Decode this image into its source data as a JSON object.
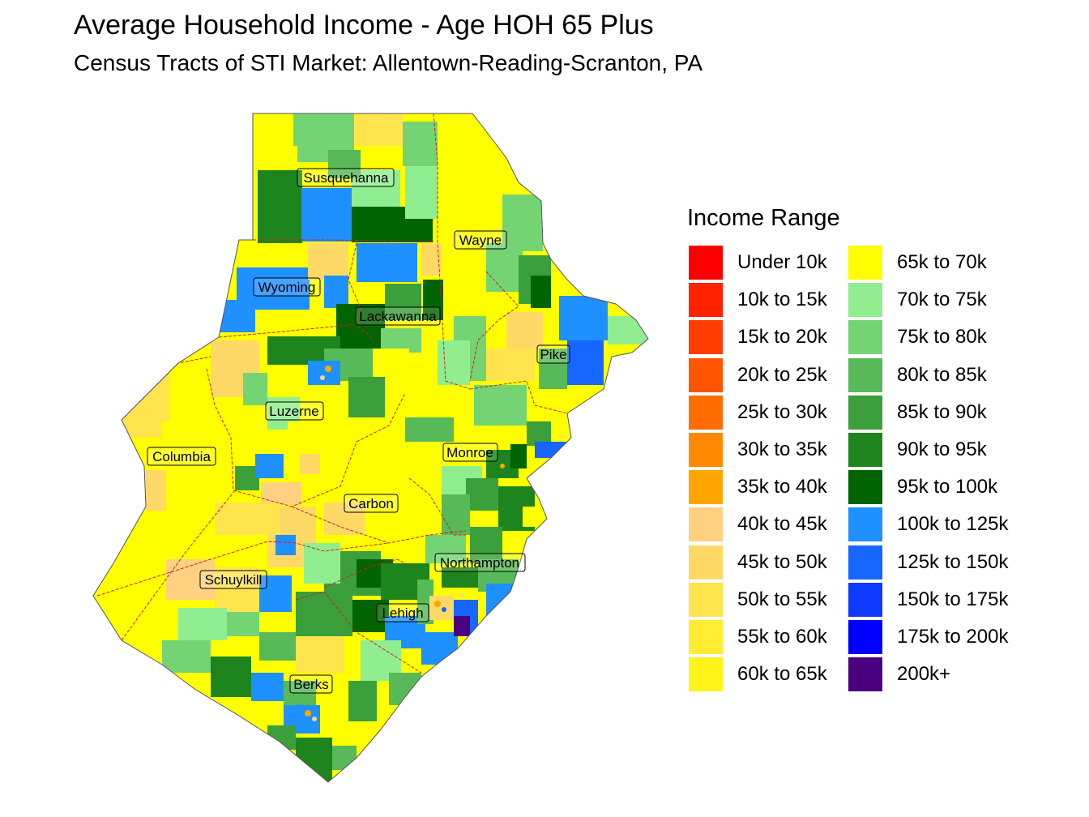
{
  "title": "Average Household Income - Age HOH 65 Plus",
  "subtitle": "Census Tracts of STI Market: Allentown-Reading-Scranton, PA",
  "legend": {
    "title": "Income Range",
    "items": [
      {
        "label": "Under 10k",
        "color": "#ff0000"
      },
      {
        "label": "10k to 15k",
        "color": "#ff2200"
      },
      {
        "label": "15k to 20k",
        "color": "#ff3d00"
      },
      {
        "label": "20k to 25k",
        "color": "#ff5500"
      },
      {
        "label": "25k to 30k",
        "color": "#ff6d00"
      },
      {
        "label": "30k to 35k",
        "color": "#ff8800"
      },
      {
        "label": "35k to 40k",
        "color": "#ffa500"
      },
      {
        "label": "40k to 45k",
        "color": "#ffd180"
      },
      {
        "label": "45k to 50k",
        "color": "#ffd966"
      },
      {
        "label": "50k to 55k",
        "color": "#ffe44d"
      },
      {
        "label": "55k to 60k",
        "color": "#ffec33"
      },
      {
        "label": "60k to 65k",
        "color": "#fff31a"
      },
      {
        "label": "65k to 70k",
        "color": "#ffff00"
      },
      {
        "label": "70k to 75k",
        "color": "#90ee90"
      },
      {
        "label": "75k to 80k",
        "color": "#74d474"
      },
      {
        "label": "80k to 85k",
        "color": "#57b957"
      },
      {
        "label": "85k to 90k",
        "color": "#3b9f3b"
      },
      {
        "label": "90k to 95k",
        "color": "#1e841e"
      },
      {
        "label": "95k to 100k",
        "color": "#006400"
      },
      {
        "label": "100k to 125k",
        "color": "#1e90ff"
      },
      {
        "label": "125k to 150k",
        "color": "#1766ff"
      },
      {
        "label": "150k to 175k",
        "color": "#0f3bff"
      },
      {
        "label": "175k to 200k",
        "color": "#0000ff"
      },
      {
        "label": "200k+",
        "color": "#4b0082"
      }
    ]
  },
  "counties": [
    "Susquehanna",
    "Wayne",
    "Wyoming",
    "Lackawanna",
    "Pike",
    "Luzerne",
    "Columbia",
    "Monroe",
    "Carbon",
    "Northampton",
    "Schuylkill",
    "Lehigh",
    "Berks"
  ]
}
